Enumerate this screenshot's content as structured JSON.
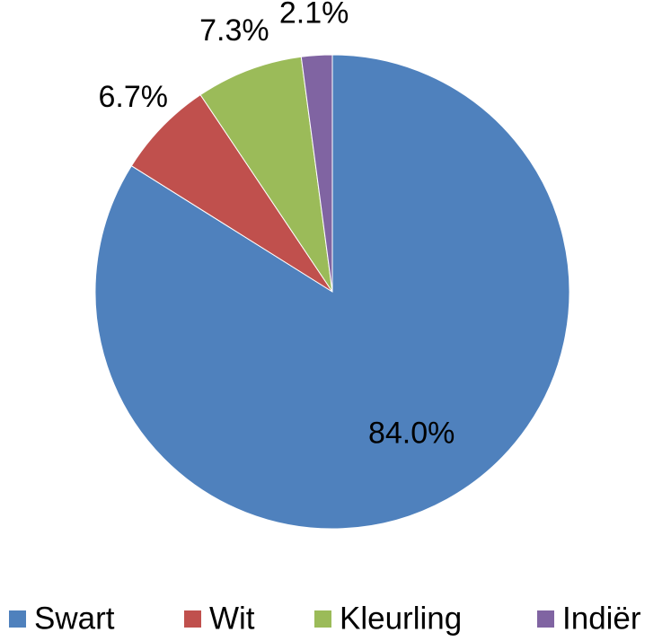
{
  "chart_data": {
    "type": "pie",
    "categories": [
      "Swart",
      "Wit",
      "Kleurling",
      "Indiër"
    ],
    "values": [
      84.0,
      6.7,
      7.3,
      2.1
    ],
    "value_labels": [
      "84.0%",
      "6.7%",
      "7.3%",
      "2.1%"
    ],
    "colors": [
      "#4f81bd",
      "#c0504d",
      "#9bbb59",
      "#8064a2"
    ],
    "legend": "bottom"
  }
}
